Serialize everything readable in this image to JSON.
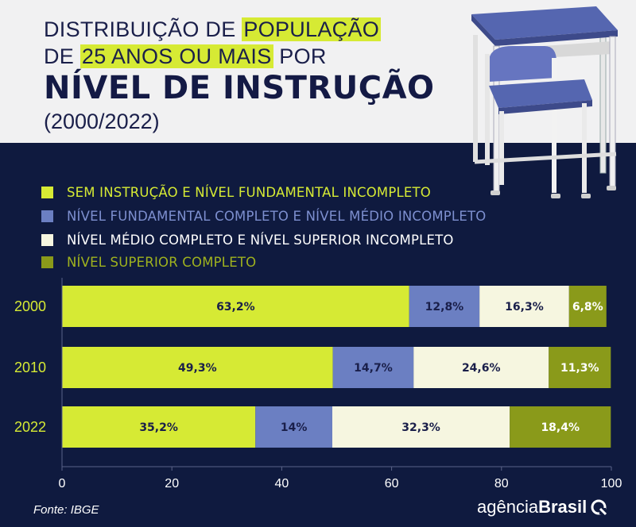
{
  "header": {
    "title_line1_a": "DISTRIBUIÇÃO DE ",
    "title_line1_b": "POPULAÇÃO",
    "title_line2_a": "DE ",
    "title_line2_b": "25 ANOS OU MAIS",
    "title_line2_c": " POR",
    "title_main": "NÍVEL DE INSTRUÇÃO",
    "title_sub": "(2000/2022)"
  },
  "legend": [
    {
      "label": "SEM INSTRUÇÃO E NÍVEL FUNDAMENTAL INCOMPLETO",
      "color": "#d6ea34",
      "text_color": "#d6ea34"
    },
    {
      "label": "NÍVEL FUNDAMENTAL COMPLETO E NÍVEL MÉDIO INCOMPLETO",
      "color": "#6b7fc2",
      "text_color": "#7d8fcf"
    },
    {
      "label": "NÍVEL MÉDIO COMPLETO E NÍVEL SUPERIOR INCOMPLETO",
      "color": "#f6f6e0",
      "text_color": "#ffffff"
    },
    {
      "label": "NÍVEL SUPERIOR COMPLETO",
      "color": "#8a9a1a",
      "text_color": "#9fb21e"
    }
  ],
  "chart_data": {
    "type": "bar",
    "orientation": "horizontal",
    "stacked": true,
    "categories": [
      "2000",
      "2010",
      "2022"
    ],
    "series": [
      {
        "name": "SEM INSTRUÇÃO E NÍVEL FUNDAMENTAL INCOMPLETO",
        "values": [
          63.2,
          49.3,
          35.2
        ],
        "labels": [
          "63,2%",
          "49,3%",
          "35,2%"
        ],
        "color": "#d6ea34",
        "label_color": "#1a1f4a"
      },
      {
        "name": "NÍVEL FUNDAMENTAL COMPLETO E NÍVEL MÉDIO INCOMPLETO",
        "values": [
          12.8,
          14.7,
          14.0
        ],
        "labels": [
          "12,8%",
          "14,7%",
          "14%"
        ],
        "color": "#6b7fc2",
        "label_color": "#1a1f4a"
      },
      {
        "name": "NÍVEL MÉDIO COMPLETO E NÍVEL SUPERIOR INCOMPLETO",
        "values": [
          16.3,
          24.6,
          32.3
        ],
        "labels": [
          "16,3%",
          "24,6%",
          "32,3%"
        ],
        "color": "#f6f6e0",
        "label_color": "#1a1f4a"
      },
      {
        "name": "NÍVEL SUPERIOR COMPLETO",
        "values": [
          6.8,
          11.3,
          18.4
        ],
        "labels": [
          "6,8%",
          "11,3%",
          "18,4%"
        ],
        "color": "#8a9a1a",
        "label_color": "#ffffff"
      }
    ],
    "xlim": [
      0,
      100
    ],
    "xticks": [
      0,
      20,
      40,
      60,
      80,
      100
    ],
    "grid": false
  },
  "footer": {
    "source": "Fonte: IBGE",
    "brand_light": "agência",
    "brand_bold": "Brasil"
  }
}
